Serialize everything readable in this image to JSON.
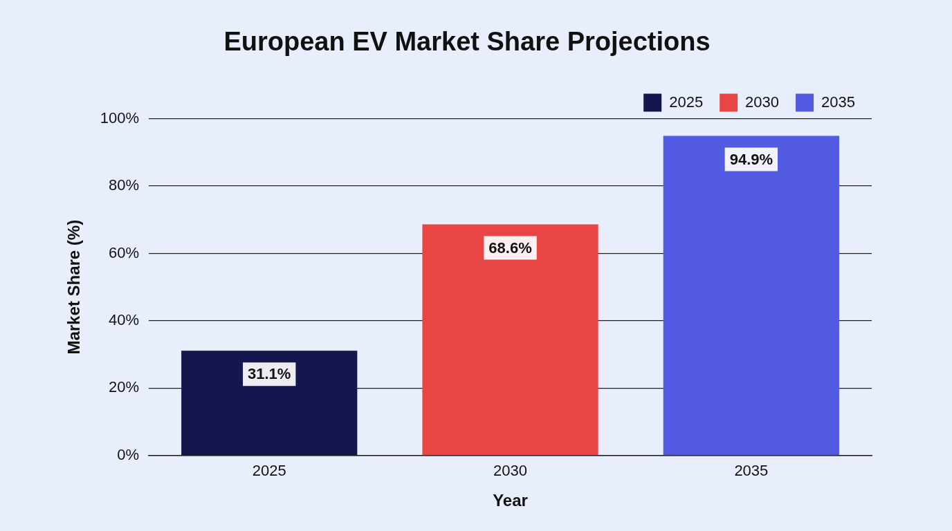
{
  "chart_data": {
    "type": "bar",
    "title": "European EV Market Share Projections",
    "xlabel": "Year",
    "ylabel": "Market Share (%)",
    "categories": [
      "2025",
      "2030",
      "2035"
    ],
    "series": [
      {
        "name": "2025",
        "color": "#16164f",
        "values": [
          31.1,
          null,
          null
        ],
        "value_labels": [
          "31.1%",
          null,
          null
        ]
      },
      {
        "name": "2030",
        "color": "#e84545",
        "values": [
          null,
          68.6,
          null
        ],
        "value_labels": [
          null,
          "68.6%",
          null
        ]
      },
      {
        "name": "2035",
        "color": "#525be2",
        "values": [
          null,
          null,
          94.9
        ],
        "value_labels": [
          null,
          null,
          "94.9%"
        ]
      }
    ],
    "ylim": [
      0,
      100
    ],
    "yticks": [
      {
        "value": 0,
        "label": "0%"
      },
      {
        "value": 20,
        "label": "20%"
      },
      {
        "value": 40,
        "label": "40%"
      },
      {
        "value": 60,
        "label": "60%"
      },
      {
        "value": 80,
        "label": "80%"
      },
      {
        "value": 100,
        "label": "100%"
      }
    ],
    "grid": "y",
    "legend": "top right"
  }
}
